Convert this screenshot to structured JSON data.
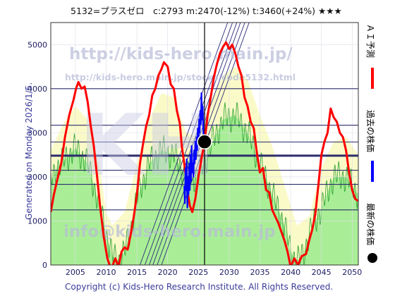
{
  "header": {
    "title": "5132=プラスゼロ　c:2793  m:2470(-12%)  t:3460(+24%)  ★★★"
  },
  "side_text": "Generated on Monday 2026/1/5.",
  "footer": {
    "copyright": "Copyright (c) Kids-Hero Research Institute. All Rights Reserved."
  },
  "watermarks": {
    "url_main": "http://kids-hero.main.jp/",
    "url_sub": "http://kids-hero.main.jp/stocks/code5132.html",
    "logo": "KH",
    "mail": "info@kids-hero.main.jp"
  },
  "legend": [
    {
      "label": "ＡＩ予測",
      "color": "#ff0000"
    },
    {
      "label": "過去の株価",
      "color": "#0000ff"
    },
    {
      "label": "最新の株価",
      "color": "#000000"
    }
  ],
  "colors": {
    "ai": "#ff0000",
    "past": "#0000ff",
    "latest": "#000000",
    "yellow_fill": "#fafac8",
    "green_fill": "#a9ee96",
    "green_line": "#3aa73a",
    "hline": "#2c2c6c",
    "diag": "#2c2c7c"
  },
  "chart_data": {
    "type": "line",
    "title": "5132=プラスゼロ　c:2793  m:2470(-12%)  t:3460(+24%)  ★★★",
    "xlim": [
      2001,
      2051
    ],
    "ylim": [
      0,
      5500
    ],
    "x_ticks": [
      2005,
      2010,
      2015,
      2020,
      2025,
      2030,
      2035,
      2040,
      2045,
      2050
    ],
    "y_ticks": [
      0,
      1000,
      2000,
      3000,
      4000,
      5000
    ],
    "current": {
      "x": 2026,
      "y": 2793
    },
    "vertical_marker_x": 2026,
    "horizontal_levels": [
      4000,
      3170,
      2790,
      2490,
      2470,
      2150,
      1830,
      1250
    ],
    "series": [
      {
        "name": "ＡＩ予測",
        "color": "#ff0000",
        "points": [
          [
            2001,
            1200
          ],
          [
            2001.5,
            1600
          ],
          [
            2002,
            1900
          ],
          [
            2002.7,
            2300
          ],
          [
            2003.3,
            2900
          ],
          [
            2004,
            3400
          ],
          [
            2004.7,
            3750
          ],
          [
            2005.1,
            4000
          ],
          [
            2005.5,
            4150
          ],
          [
            2006,
            4000
          ],
          [
            2006.5,
            4050
          ],
          [
            2007,
            3700
          ],
          [
            2007.5,
            3150
          ],
          [
            2008,
            2700
          ],
          [
            2008.5,
            2050
          ],
          [
            2009,
            1350
          ],
          [
            2009.6,
            650
          ],
          [
            2010.2,
            150
          ],
          [
            2010.8,
            -100
          ],
          [
            2011.5,
            150
          ],
          [
            2012,
            -50
          ],
          [
            2012.5,
            300
          ],
          [
            2013,
            400
          ],
          [
            2013.5,
            350
          ],
          [
            2014,
            700
          ],
          [
            2014.5,
            1100
          ],
          [
            2015,
            1600
          ],
          [
            2015.5,
            2300
          ],
          [
            2016,
            2750
          ],
          [
            2016.5,
            3150
          ],
          [
            2017,
            3400
          ],
          [
            2017.5,
            3850
          ],
          [
            2018,
            4000
          ],
          [
            2018.5,
            4300
          ],
          [
            2019,
            4450
          ],
          [
            2019.4,
            4600
          ],
          [
            2020,
            4500
          ],
          [
            2020.5,
            4100
          ],
          [
            2021,
            4000
          ],
          [
            2021.5,
            3500
          ],
          [
            2022,
            3200
          ],
          [
            2022.3,
            2700
          ],
          [
            2022.8,
            2200
          ],
          [
            2023.2,
            1700
          ],
          [
            2023.6,
            1350
          ],
          [
            2024,
            1200
          ],
          [
            2024.5,
            1500
          ],
          [
            2025,
            2000
          ],
          [
            2025.5,
            2400
          ],
          [
            2026,
            2800
          ],
          [
            2026.5,
            3400
          ],
          [
            2027,
            3800
          ],
          [
            2027.5,
            4250
          ],
          [
            2028,
            4550
          ],
          [
            2028.5,
            4800
          ],
          [
            2029,
            4950
          ],
          [
            2029.5,
            5050
          ],
          [
            2030,
            4900
          ],
          [
            2030.5,
            5000
          ],
          [
            2031,
            4800
          ],
          [
            2031.5,
            4500
          ],
          [
            2032,
            4300
          ],
          [
            2032.5,
            3800
          ],
          [
            2033,
            3600
          ],
          [
            2033.5,
            3250
          ],
          [
            2034,
            3100
          ],
          [
            2034.5,
            2550
          ],
          [
            2035,
            2100
          ],
          [
            2035.5,
            2200
          ],
          [
            2036,
            1700
          ],
          [
            2036.5,
            1650
          ],
          [
            2037,
            1250
          ],
          [
            2037.5,
            1100
          ],
          [
            2038,
            950
          ],
          [
            2038.5,
            750
          ],
          [
            2039,
            550
          ],
          [
            2039.5,
            300
          ],
          [
            2040,
            -50
          ],
          [
            2040.6,
            150
          ],
          [
            2041.2,
            0
          ],
          [
            2041.8,
            200
          ],
          [
            2042.5,
            250
          ],
          [
            2043,
            550
          ],
          [
            2043.5,
            800
          ],
          [
            2044,
            1150
          ],
          [
            2044.5,
            1800
          ],
          [
            2045,
            2500
          ],
          [
            2045.5,
            2800
          ],
          [
            2046,
            3000
          ],
          [
            2046.5,
            3550
          ],
          [
            2047,
            3350
          ],
          [
            2047.5,
            3250
          ],
          [
            2048,
            3000
          ],
          [
            2048.5,
            2900
          ],
          [
            2049,
            2600
          ],
          [
            2049.5,
            2100
          ],
          [
            2050,
            1700
          ],
          [
            2050.5,
            1500
          ],
          [
            2051,
            1450
          ]
        ]
      },
      {
        "name": "過去の株価",
        "color": "#0000ff",
        "points": [
          [
            2022.7,
            1800
          ],
          [
            2022.8,
            1400
          ],
          [
            2022.9,
            2200
          ],
          [
            2023.0,
            1700
          ],
          [
            2023.1,
            2400
          ],
          [
            2023.2,
            1300
          ],
          [
            2023.3,
            2000
          ],
          [
            2023.4,
            1600
          ],
          [
            2023.5,
            2300
          ],
          [
            2023.6,
            1700
          ],
          [
            2023.7,
            2500
          ],
          [
            2023.8,
            1900
          ],
          [
            2023.9,
            2700
          ],
          [
            2024.0,
            2100
          ],
          [
            2024.1,
            2300
          ],
          [
            2024.2,
            2000
          ],
          [
            2024.3,
            2600
          ],
          [
            2024.4,
            2300
          ],
          [
            2024.5,
            2800
          ],
          [
            2024.6,
            2400
          ],
          [
            2024.7,
            2900
          ],
          [
            2024.8,
            2600
          ],
          [
            2024.9,
            3100
          ],
          [
            2025.0,
            2800
          ],
          [
            2025.1,
            3300
          ],
          [
            2025.2,
            3000
          ],
          [
            2025.3,
            3500
          ],
          [
            2025.4,
            3200
          ],
          [
            2025.5,
            3900
          ],
          [
            2025.6,
            3300
          ],
          [
            2025.7,
            3600
          ],
          [
            2025.8,
            3000
          ],
          [
            2025.9,
            2900
          ],
          [
            2026.0,
            2793
          ]
        ]
      }
    ],
    "bands": [
      {
        "name": "yellow",
        "color": "#fafac8",
        "points": [
          [
            2001,
            2600
          ],
          [
            2003,
            3200
          ],
          [
            2005,
            3600
          ],
          [
            2007,
            3300
          ],
          [
            2009,
            2200
          ],
          [
            2010,
            1200
          ],
          [
            2011,
            900
          ],
          [
            2013,
            1200
          ],
          [
            2015,
            2300
          ],
          [
            2017,
            3300
          ],
          [
            2019,
            3900
          ],
          [
            2021,
            3800
          ],
          [
            2023,
            3000
          ],
          [
            2025,
            2900
          ],
          [
            2027,
            3700
          ],
          [
            2029,
            4300
          ],
          [
            2031,
            4500
          ],
          [
            2033,
            4200
          ],
          [
            2035,
            3400
          ],
          [
            2037,
            2700
          ],
          [
            2039,
            1800
          ],
          [
            2041,
            900
          ],
          [
            2043,
            1100
          ],
          [
            2045,
            2200
          ],
          [
            2047,
            2800
          ],
          [
            2049,
            2900
          ],
          [
            2051,
            2500
          ]
        ]
      },
      {
        "name": "green",
        "color": "#a9ee96",
        "points": [
          [
            2001,
            1900
          ],
          [
            2002,
            2200
          ],
          [
            2004,
            2500
          ],
          [
            2005,
            2650
          ],
          [
            2007,
            2300
          ],
          [
            2009,
            1300
          ],
          [
            2010,
            700
          ],
          [
            2011,
            200
          ],
          [
            2012,
            100
          ],
          [
            2013,
            300
          ],
          [
            2014,
            800
          ],
          [
            2015,
            1500
          ],
          [
            2017,
            2300
          ],
          [
            2019,
            2600
          ],
          [
            2021,
            2500
          ],
          [
            2023,
            2000
          ],
          [
            2025,
            2000
          ],
          [
            2027,
            2700
          ],
          [
            2029,
            3300
          ],
          [
            2031,
            3400
          ],
          [
            2033,
            3000
          ],
          [
            2035,
            2300
          ],
          [
            2037,
            1600
          ],
          [
            2039,
            900
          ],
          [
            2040,
            300
          ],
          [
            2041,
            100
          ],
          [
            2042,
            200
          ],
          [
            2043,
            700
          ],
          [
            2045,
            1300
          ],
          [
            2047,
            2000
          ],
          [
            2049,
            2000
          ],
          [
            2051,
            1600
          ]
        ]
      }
    ]
  }
}
